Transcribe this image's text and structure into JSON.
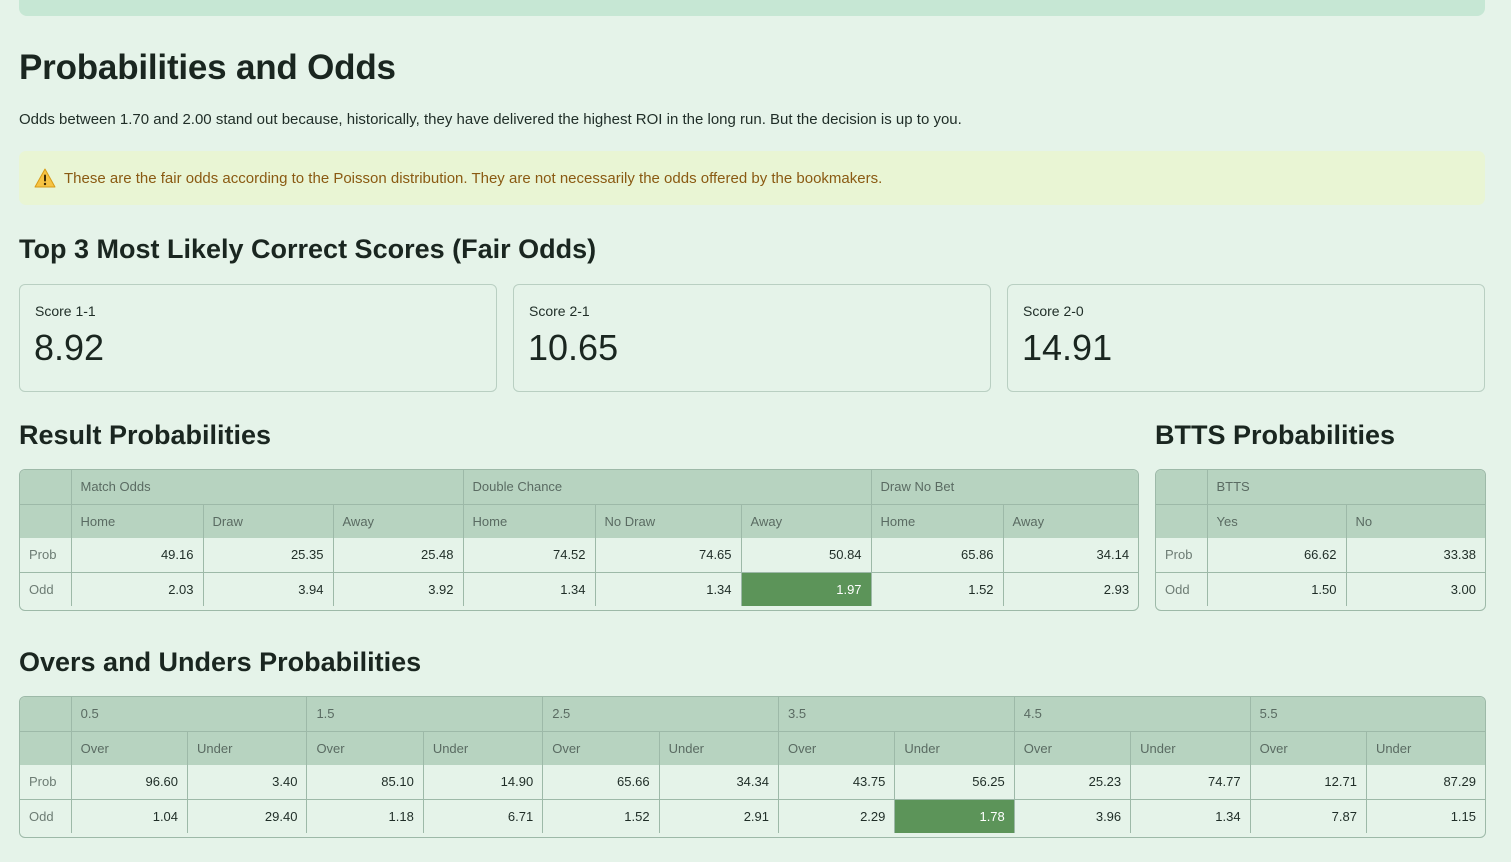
{
  "page": {
    "title": "Probabilities and Odds",
    "intro": "Odds between 1.70 and 2.00 stand out because, historically, they have delivered the highest ROI in the long run. But the decision is up to you.",
    "warning": {
      "icon": "warning-icon",
      "text": "These are the fair odds according to the Poisson distribution. They are not necessarily the odds offered by the bookmakers."
    }
  },
  "scores": {
    "heading": "Top 3 Most Likely Correct Scores (Fair Odds)",
    "items": [
      {
        "label": "Score 1-1",
        "value": "8.92"
      },
      {
        "label": "Score 2-1",
        "value": "10.65"
      },
      {
        "label": "Score 2-0",
        "value": "14.91"
      }
    ]
  },
  "result": {
    "heading": "Result Probabilities",
    "groups": [
      "Match Odds",
      "Double Chance",
      "Draw No Bet"
    ],
    "columns": [
      "Home",
      "Draw",
      "Away",
      "Home",
      "No Draw",
      "Away",
      "Home",
      "Away"
    ],
    "rows": [
      {
        "label": "Prob",
        "values": [
          "49.16",
          "25.35",
          "25.48",
          "74.52",
          "74.65",
          "50.84",
          "65.86",
          "34.14"
        ]
      },
      {
        "label": "Odd",
        "values": [
          "2.03",
          "3.94",
          "3.92",
          "1.34",
          "1.34",
          "1.97",
          "1.52",
          "2.93"
        ]
      }
    ]
  },
  "btts": {
    "heading": "BTTS Probabilities",
    "group": "BTTS",
    "columns": [
      "Yes",
      "No"
    ],
    "rows": [
      {
        "label": "Prob",
        "values": [
          "66.62",
          "33.38"
        ]
      },
      {
        "label": "Odd",
        "values": [
          "1.50",
          "3.00"
        ]
      }
    ]
  },
  "overs": {
    "heading": "Overs and Unders Probabilities",
    "groups": [
      "0.5",
      "1.5",
      "2.5",
      "3.5",
      "4.5",
      "5.5"
    ],
    "columns": [
      "Over",
      "Under",
      "Over",
      "Under",
      "Over",
      "Under",
      "Over",
      "Under",
      "Over",
      "Under",
      "Over",
      "Under"
    ],
    "rows": [
      {
        "label": "Prob",
        "values": [
          "96.60",
          "3.40",
          "85.10",
          "14.90",
          "65.66",
          "34.34",
          "43.75",
          "56.25",
          "25.23",
          "74.77",
          "12.71",
          "87.29"
        ]
      },
      {
        "label": "Odd",
        "values": [
          "1.04",
          "29.40",
          "1.18",
          "6.71",
          "1.52",
          "2.91",
          "2.29",
          "1.78",
          "3.96",
          "1.34",
          "7.87",
          "1.15"
        ]
      }
    ]
  },
  "colors": {
    "background": "#e5f3e9",
    "header": "#b7d3c0",
    "highlight": "#5c9459",
    "warning_bg": "#e9f5d4",
    "warning_text": "#8a5a12"
  }
}
